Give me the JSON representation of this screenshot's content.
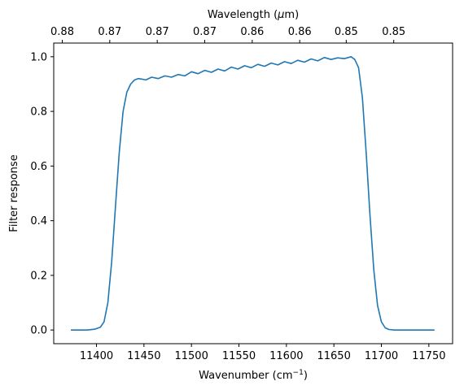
{
  "chart_data": {
    "type": "line",
    "xlabel_text": "Wavenumber (cm",
    "xlabel_sup": "−1",
    "xlabel_close": ")",
    "ylabel": "Filter response",
    "top_xlabel_text": "Wavelength (",
    "top_xlabel_mu": "μ",
    "top_xlabel_unit": "m)",
    "xlim": [
      11355,
      11775
    ],
    "ylim": [
      -0.05,
      1.05
    ],
    "x_ticks": [
      11400,
      11450,
      11500,
      11550,
      11600,
      11650,
      11700,
      11750
    ],
    "y_ticks": [
      0.0,
      0.2,
      0.4,
      0.6,
      0.8,
      1.0
    ],
    "top_x_ticks": [
      {
        "wavenumber": 11364,
        "label": "0.88"
      },
      {
        "wavenumber": 11414,
        "label": "0.87"
      },
      {
        "wavenumber": 11464,
        "label": "0.87"
      },
      {
        "wavenumber": 11514,
        "label": "0.87"
      },
      {
        "wavenumber": 11564,
        "label": "0.86"
      },
      {
        "wavenumber": 11614,
        "label": "0.86"
      },
      {
        "wavenumber": 11663,
        "label": "0.85"
      },
      {
        "wavenumber": 11713,
        "label": "0.85"
      }
    ],
    "grid": false,
    "line_color": "#1f77b4",
    "series": [
      {
        "x": [
          11373,
          11390,
          11398,
          11404,
          11408,
          11412,
          11416,
          11420,
          11424,
          11428,
          11432,
          11436,
          11440,
          11444,
          11448,
          11452,
          11458,
          11465,
          11472,
          11479,
          11486,
          11493,
          11500,
          11507,
          11514,
          11521,
          11528,
          11535,
          11542,
          11549,
          11556,
          11563,
          11570,
          11577,
          11584,
          11591,
          11598,
          11605,
          11612,
          11619,
          11626,
          11633,
          11640,
          11647,
          11654,
          11661,
          11668,
          11672,
          11676,
          11680,
          11684,
          11688,
          11692,
          11696,
          11700,
          11704,
          11708,
          11714,
          11725,
          11756
        ],
        "y": [
          0.0,
          0.0,
          0.003,
          0.01,
          0.03,
          0.1,
          0.25,
          0.45,
          0.65,
          0.8,
          0.87,
          0.9,
          0.915,
          0.92,
          0.918,
          0.915,
          0.925,
          0.92,
          0.93,
          0.925,
          0.935,
          0.93,
          0.945,
          0.938,
          0.95,
          0.943,
          0.955,
          0.948,
          0.962,
          0.955,
          0.967,
          0.96,
          0.972,
          0.965,
          0.977,
          0.97,
          0.982,
          0.975,
          0.987,
          0.98,
          0.992,
          0.985,
          0.997,
          0.99,
          0.996,
          0.993,
          1.0,
          0.99,
          0.96,
          0.85,
          0.65,
          0.42,
          0.22,
          0.09,
          0.03,
          0.008,
          0.002,
          0.0,
          0.0,
          0.0
        ]
      }
    ]
  }
}
